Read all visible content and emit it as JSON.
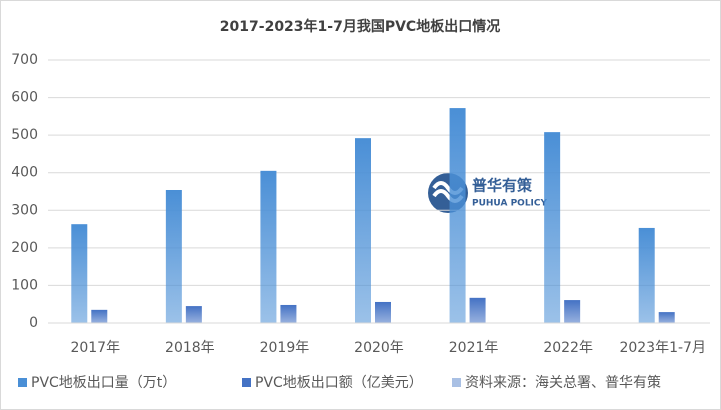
{
  "chart_data": {
    "type": "bar",
    "title": "2017-2023年1-7月我国PVC地板出口情况",
    "categories": [
      "2017年",
      "2018年",
      "2019年",
      "2020年",
      "2021年",
      "2022年",
      "2023年1-7月"
    ],
    "series": [
      {
        "name": "PVC地板出口量（万t）",
        "color": "#4a8fd6",
        "values": [
          263,
          354,
          405,
          492,
          572,
          508,
          253
        ]
      },
      {
        "name": "PVC地板出口额（亿美元）",
        "color": "#4472c4",
        "values": [
          35,
          45,
          48,
          56,
          67,
          61,
          29
        ]
      },
      {
        "name": "资料来源：海关总署、普华有策",
        "color": "#a9c0e4",
        "values": [
          null,
          null,
          null,
          null,
          null,
          null,
          null
        ]
      }
    ],
    "ylim": [
      0,
      700
    ],
    "yticks": [
      0,
      100,
      200,
      300,
      400,
      500,
      600,
      700
    ],
    "grid": true,
    "legend": "bottom",
    "watermark": {
      "name": "普华有策",
      "subname": "PUHUA POLICY"
    }
  }
}
